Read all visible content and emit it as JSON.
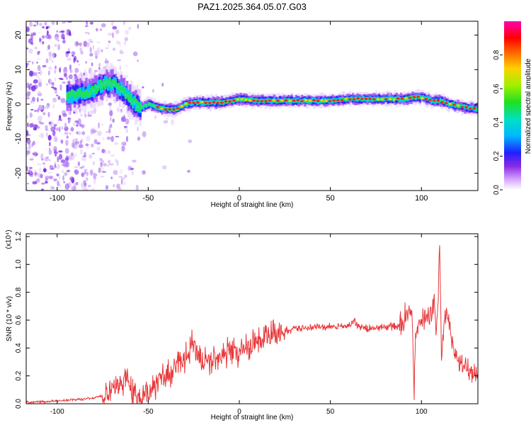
{
  "title": "PAZ1.2025.364.05.07.G03",
  "chart_data": [
    {
      "type": "heatmap",
      "name": "spectrogram",
      "xlabel": "Height of straight line (km)",
      "ylabel": "Frequency (Hz)",
      "xlim": [
        -117,
        131
      ],
      "ylim": [
        -25,
        24
      ],
      "xticks": [
        -100,
        -50,
        0,
        50,
        100
      ],
      "yticks": [
        -20,
        -10,
        0,
        10,
        20
      ],
      "ridge": {
        "x": [
          -117,
          -80,
          -75,
          -70,
          -65,
          -60,
          -55,
          -50,
          -45,
          -40,
          -35,
          -30,
          -25,
          -20,
          -10,
          0,
          10,
          20,
          30,
          40,
          50,
          60,
          70,
          80,
          90,
          95,
          100,
          105,
          110,
          115,
          120,
          125,
          131
        ],
        "y": [
          0,
          4,
          6,
          6,
          4,
          1,
          -1,
          0,
          -1,
          -1.5,
          -1.5,
          0,
          0.5,
          0.5,
          0.5,
          1.5,
          1,
          1,
          1,
          1,
          1,
          1.5,
          1.5,
          1.5,
          1.5,
          2,
          2,
          1,
          1,
          0,
          -0.5,
          -1,
          -1.5
        ]
      },
      "colorbar": {
        "label": "Normalized spectral amplitude",
        "range": [
          0,
          1
        ],
        "ticks": [
          "0.0",
          "0.2",
          "0.4",
          "0.6",
          "0.8"
        ]
      }
    },
    {
      "type": "line",
      "name": "snr",
      "xlabel": "Height of straight line (km)",
      "ylabel": "SNR (10 * v/v)",
      "scale_label": "(x10⁴)",
      "xlim": [
        -117,
        131
      ],
      "ylim": [
        0,
        1.22
      ],
      "xticks": [
        -100,
        -50,
        0,
        50,
        100
      ],
      "yticks": [
        "0.0",
        "0.2",
        "0.4",
        "0.6",
        "0.8",
        "1.0",
        "1.2"
      ],
      "color": "#e8383b",
      "x": [
        -117,
        -100,
        -90,
        -80,
        -72,
        -66,
        -62,
        -58,
        -54,
        -50,
        -45,
        -40,
        -35,
        -30,
        -27,
        -25,
        -22,
        -20,
        -15,
        -10,
        -5,
        0,
        5,
        10,
        15,
        20,
        25,
        30,
        40,
        50,
        55,
        60,
        63,
        65,
        70,
        80,
        88,
        90,
        93,
        95,
        96,
        97,
        98,
        100,
        103,
        105,
        107,
        108,
        109,
        110,
        111,
        112,
        113,
        115,
        118,
        122,
        126,
        131
      ],
      "y": [
        0.01,
        0.02,
        0.03,
        0.04,
        0.07,
        0.12,
        0.2,
        0.08,
        0.03,
        0.08,
        0.16,
        0.2,
        0.25,
        0.3,
        0.4,
        0.45,
        0.35,
        0.3,
        0.32,
        0.35,
        0.38,
        0.36,
        0.42,
        0.45,
        0.48,
        0.5,
        0.52,
        0.54,
        0.55,
        0.55,
        0.55,
        0.56,
        0.6,
        0.55,
        0.54,
        0.55,
        0.56,
        0.6,
        0.7,
        0.58,
        0.1,
        0.5,
        0.55,
        0.6,
        0.64,
        0.65,
        0.7,
        0.5,
        0.72,
        1.18,
        0.35,
        0.5,
        0.62,
        0.6,
        0.35,
        0.28,
        0.24,
        0.22
      ]
    }
  ]
}
